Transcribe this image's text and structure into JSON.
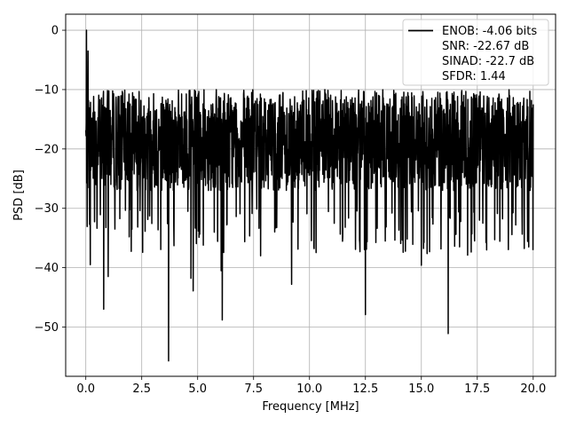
{
  "chart_data": {
    "type": "line",
    "title": "",
    "xlabel": "Frequency [MHz]",
    "ylabel": "PSD [dB]",
    "xlim": [
      -0.9,
      21.0
    ],
    "ylim": [
      -58.3,
      2.7
    ],
    "grid": true,
    "legend_position": "top-right",
    "x_ticks": [
      0.0,
      2.5,
      5.0,
      7.5,
      10.0,
      12.5,
      15.0,
      17.5,
      20.0
    ],
    "x_tick_labels": [
      "0.0",
      "2.5",
      "5.0",
      "7.5",
      "10.0",
      "12.5",
      "15.0",
      "17.5",
      "20.0"
    ],
    "y_ticks": [
      0,
      -10,
      -20,
      -30,
      -40,
      -50
    ],
    "y_tick_labels": [
      "0",
      "−10",
      "−20",
      "−30",
      "−40",
      "−50"
    ],
    "series": [
      {
        "name": "ENOB: -4.06 bits",
        "color": "#000000",
        "line_sample": true,
        "x_range": [
          0,
          20.0
        ],
        "n_points": 2000,
        "typical_low": -27,
        "typical_high": -10,
        "noise_seed": 7,
        "notable_points": [
          {
            "x": 0.03,
            "y": 0.0
          },
          {
            "x": 0.05,
            "y": -16.5
          },
          {
            "x": 0.1,
            "y": -3.5
          },
          {
            "x": 0.2,
            "y": -39.5
          },
          {
            "x": 0.8,
            "y": -47.0
          },
          {
            "x": 1.0,
            "y": -41.5
          },
          {
            "x": 3.7,
            "y": -55.7
          },
          {
            "x": 4.7,
            "y": -41.8
          },
          {
            "x": 4.8,
            "y": -43.9
          },
          {
            "x": 6.1,
            "y": -48.8
          },
          {
            "x": 6.05,
            "y": -40.5
          },
          {
            "x": 9.2,
            "y": -42.8
          },
          {
            "x": 12.5,
            "y": -47.9
          },
          {
            "x": 15.0,
            "y": -39.6
          },
          {
            "x": 16.2,
            "y": -51.1
          },
          {
            "x": 19.8,
            "y": -36.5
          }
        ]
      },
      {
        "name": "SNR: -22.67 dB",
        "color": "#ffffff",
        "line_sample": false
      },
      {
        "name": "SINAD: -22.7 dB",
        "color": "#ffffff",
        "line_sample": false
      },
      {
        "name": "SFDR: 1.44",
        "color": "#ffffff",
        "line_sample": false
      }
    ]
  }
}
